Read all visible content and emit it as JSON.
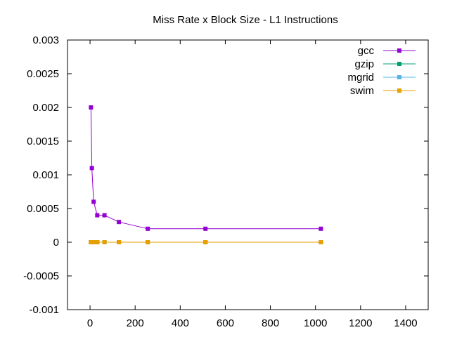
{
  "chart_data": {
    "type": "line",
    "title": "Miss Rate x Block Size - L1 Instructions",
    "xlabel": "",
    "ylabel": "",
    "xlim": [
      -100,
      1500
    ],
    "ylim": [
      -0.001,
      0.003
    ],
    "x_ticks": [
      "0",
      "200",
      "400",
      "600",
      "800",
      "1000",
      "1200",
      "1400"
    ],
    "x_tick_values": [
      0,
      200,
      400,
      600,
      800,
      1000,
      1200,
      1400
    ],
    "y_ticks": [
      "-0.001",
      "-0.0005",
      "0",
      "0.0005",
      "0.001",
      "0.0015",
      "0.002",
      "0.0025",
      "0.003"
    ],
    "y_tick_values": [
      -0.001,
      -0.0005,
      0,
      0.0005,
      0.001,
      0.0015,
      0.002,
      0.0025,
      0.003
    ],
    "grid": false,
    "legend_position": "top-right",
    "x": [
      4,
      8,
      16,
      32,
      64,
      128,
      256,
      512,
      1024
    ],
    "series": [
      {
        "name": "gcc",
        "color": "#9400d3",
        "values": [
          0.002,
          0.0011,
          0.0006,
          0.0004,
          0.0004,
          0.0003,
          0.0002,
          0.0002,
          0.0002
        ]
      },
      {
        "name": "gzip",
        "color": "#009e73",
        "values": [
          0,
          0,
          0,
          0,
          0,
          0,
          0,
          0,
          0
        ]
      },
      {
        "name": "mgrid",
        "color": "#56b4e9",
        "values": [
          0,
          0,
          0,
          0,
          0,
          0,
          0,
          0,
          0
        ]
      },
      {
        "name": "swim",
        "color": "#e69f00",
        "values": [
          0,
          0,
          0,
          0,
          0,
          0,
          0,
          0,
          0
        ]
      }
    ]
  }
}
